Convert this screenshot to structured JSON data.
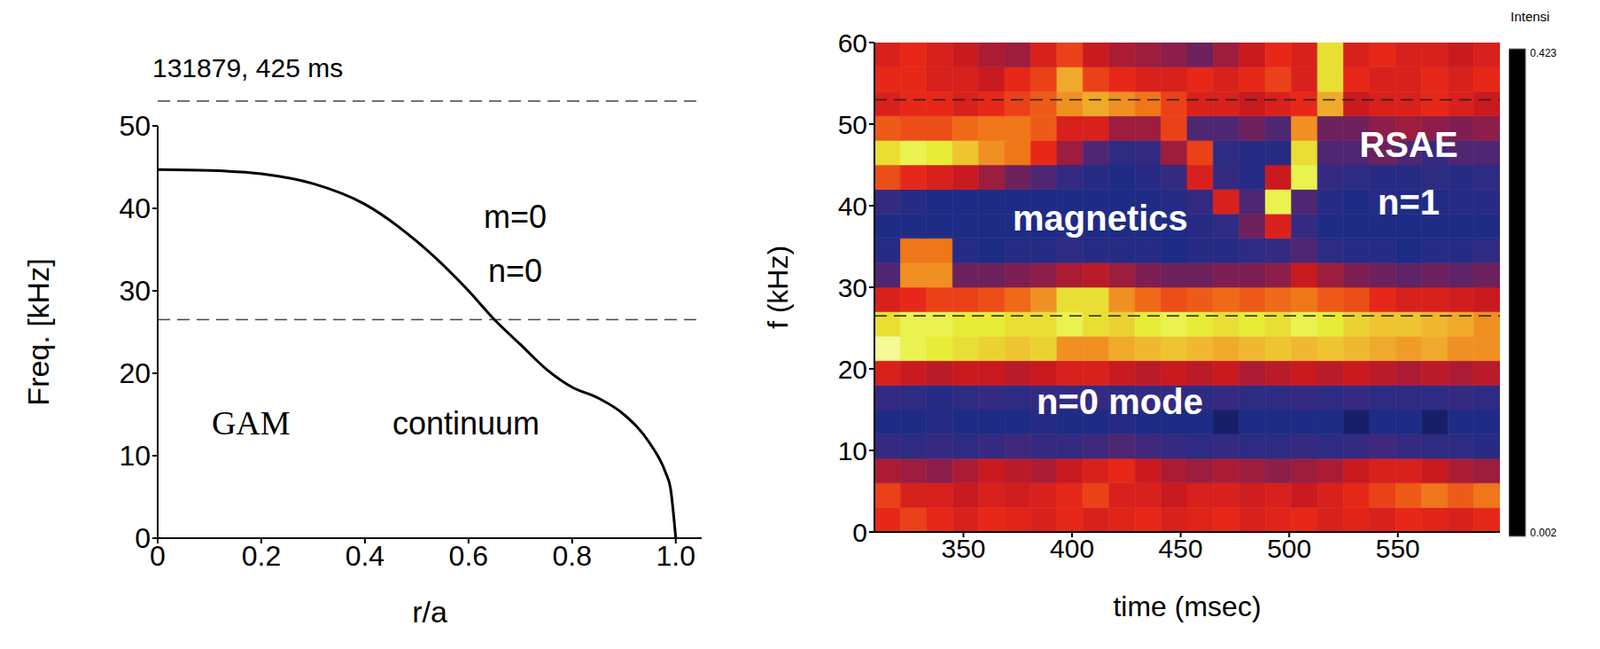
{
  "chart_data": [
    {
      "type": "line",
      "title": "131879, 425 ms",
      "x_label": "r/a",
      "y_label": "Freq. [kHz]",
      "x": [
        0,
        0.1,
        0.2,
        0.3,
        0.4,
        0.5,
        0.6,
        0.65,
        0.7,
        0.75,
        0.8,
        0.85,
        0.9,
        0.95,
        0.98,
        0.99,
        1.0
      ],
      "values": [
        44.7,
        44.6,
        44.2,
        43,
        40.5,
        36,
        30,
        26.5,
        23.5,
        20.5,
        18.3,
        17,
        15,
        11.5,
        8,
        6,
        0
      ],
      "color": "#000000",
      "xlim": [
        0,
        1.05
      ],
      "xticks": [
        0,
        0.2,
        0.4,
        0.6,
        0.8,
        {
          "value": 1,
          "label": "1.0"
        }
      ],
      "ylim": [
        0,
        50
      ],
      "yticks": [
        0,
        10,
        20,
        30,
        40,
        50
      ],
      "hlines": [
        53,
        26.5
      ],
      "annotations": [
        {
          "text": "m=0",
          "x": 0.69,
          "y": 39
        },
        {
          "text": "n=0",
          "x": 0.69,
          "y": 32.5
        },
        {
          "text": "GAM",
          "x": 0.18,
          "y": 14
        },
        {
          "text": "continuum",
          "x": 0.595,
          "y": 14
        }
      ]
    },
    {
      "type": "heatmap",
      "x_label": "time (msec)",
      "y_label": "f (kHz)",
      "xlim": [
        309,
        597
      ],
      "xticks": [
        350,
        400,
        450,
        500,
        550
      ],
      "ylim": [
        0,
        60
      ],
      "yticks": [
        0,
        10,
        20,
        30,
        40,
        50,
        60
      ],
      "hlines": [
        53,
        26.5
      ],
      "time_bins": [
        309,
        321,
        333,
        345,
        357,
        369,
        381,
        393,
        405,
        417,
        429,
        441,
        453,
        465,
        477,
        489,
        501,
        513,
        525,
        537,
        549,
        561,
        573,
        585,
        597
      ],
      "freq_bins": [
        0,
        3,
        6,
        9,
        12,
        15,
        18,
        21,
        24,
        27,
        30,
        33,
        36,
        39,
        42,
        45,
        48,
        51,
        54,
        57,
        60
      ],
      "intensity": [
        [
          0.22,
          0.24,
          0.22,
          0.2,
          0.22,
          0.21,
          0.2,
          0.22,
          0.2,
          0.21,
          0.22,
          0.2,
          0.21,
          0.22,
          0.2,
          0.21,
          0.22,
          0.2,
          0.21,
          0.2,
          0.22,
          0.21,
          0.2,
          0.22
        ],
        [
          0.24,
          0.2,
          0.2,
          0.18,
          0.2,
          0.19,
          0.2,
          0.22,
          0.24,
          0.2,
          0.2,
          0.18,
          0.2,
          0.2,
          0.19,
          0.2,
          0.18,
          0.2,
          0.22,
          0.24,
          0.26,
          0.28,
          0.26,
          0.28
        ],
        [
          0.16,
          0.15,
          0.14,
          0.16,
          0.18,
          0.17,
          0.16,
          0.18,
          0.2,
          0.22,
          0.18,
          0.16,
          0.15,
          0.16,
          0.15,
          0.14,
          0.15,
          0.16,
          0.18,
          0.2,
          0.2,
          0.18,
          0.16,
          0.15
        ],
        [
          0.08,
          0.07,
          0.08,
          0.07,
          0.08,
          0.09,
          0.08,
          0.08,
          0.09,
          0.1,
          0.09,
          0.08,
          0.07,
          0.08,
          0.07,
          0.07,
          0.08,
          0.07,
          0.08,
          0.09,
          0.08,
          0.07,
          0.07,
          0.06
        ],
        [
          0.05,
          0.05,
          0.06,
          0.05,
          0.05,
          0.05,
          0.06,
          0.05,
          0.05,
          0.06,
          0.05,
          0.05,
          0.05,
          0.04,
          0.05,
          0.05,
          0.05,
          0.05,
          0.04,
          0.05,
          0.05,
          0.04,
          0.05,
          0.05
        ],
        [
          0.08,
          0.07,
          0.06,
          0.07,
          0.08,
          0.07,
          0.08,
          0.08,
          0.08,
          0.07,
          0.08,
          0.08,
          0.07,
          0.08,
          0.07,
          0.07,
          0.08,
          0.07,
          0.08,
          0.07,
          0.07,
          0.07,
          0.08,
          0.07
        ],
        [
          0.2,
          0.18,
          0.17,
          0.18,
          0.18,
          0.17,
          0.18,
          0.2,
          0.2,
          0.18,
          0.17,
          0.18,
          0.17,
          0.18,
          0.16,
          0.17,
          0.18,
          0.17,
          0.18,
          0.17,
          0.16,
          0.17,
          0.16,
          0.17
        ],
        [
          0.4,
          0.38,
          0.37,
          0.36,
          0.35,
          0.34,
          0.35,
          0.3,
          0.3,
          0.32,
          0.33,
          0.34,
          0.33,
          0.32,
          0.33,
          0.34,
          0.33,
          0.34,
          0.33,
          0.32,
          0.31,
          0.32,
          0.3,
          0.3
        ],
        [
          0.36,
          0.38,
          0.38,
          0.37,
          0.37,
          0.36,
          0.36,
          0.38,
          0.36,
          0.35,
          0.37,
          0.38,
          0.37,
          0.36,
          0.37,
          0.36,
          0.38,
          0.37,
          0.35,
          0.34,
          0.34,
          0.33,
          0.32,
          0.3
        ],
        [
          0.2,
          0.22,
          0.24,
          0.24,
          0.25,
          0.27,
          0.3,
          0.36,
          0.36,
          0.3,
          0.27,
          0.25,
          0.26,
          0.27,
          0.26,
          0.27,
          0.28,
          0.26,
          0.25,
          0.22,
          0.2,
          0.2,
          0.19,
          0.18
        ],
        [
          0.1,
          0.3,
          0.3,
          0.12,
          0.12,
          0.13,
          0.14,
          0.16,
          0.17,
          0.15,
          0.13,
          0.12,
          0.12,
          0.13,
          0.13,
          0.14,
          0.18,
          0.15,
          0.13,
          0.12,
          0.11,
          0.12,
          0.11,
          0.12
        ],
        [
          0.06,
          0.28,
          0.28,
          0.06,
          0.05,
          0.06,
          0.06,
          0.07,
          0.06,
          0.06,
          0.06,
          0.05,
          0.06,
          0.06,
          0.07,
          0.08,
          0.1,
          0.07,
          0.06,
          0.06,
          0.05,
          0.06,
          0.06,
          0.07
        ],
        [
          0.05,
          0.05,
          0.05,
          0.05,
          0.05,
          0.05,
          0.05,
          0.05,
          0.05,
          0.05,
          0.05,
          0.05,
          0.06,
          0.07,
          0.12,
          0.2,
          0.08,
          0.05,
          0.05,
          0.05,
          0.05,
          0.05,
          0.05,
          0.05
        ],
        [
          0.08,
          0.06,
          0.05,
          0.05,
          0.05,
          0.05,
          0.05,
          0.05,
          0.05,
          0.05,
          0.05,
          0.06,
          0.08,
          0.2,
          0.1,
          0.38,
          0.1,
          0.06,
          0.05,
          0.06,
          0.05,
          0.05,
          0.06,
          0.06
        ],
        [
          0.25,
          0.22,
          0.2,
          0.18,
          0.15,
          0.12,
          0.1,
          0.08,
          0.06,
          0.05,
          0.06,
          0.08,
          0.2,
          0.08,
          0.06,
          0.18,
          0.38,
          0.08,
          0.07,
          0.06,
          0.06,
          0.07,
          0.06,
          0.07
        ],
        [
          0.36,
          0.38,
          0.37,
          0.34,
          0.3,
          0.28,
          0.22,
          0.15,
          0.1,
          0.07,
          0.08,
          0.15,
          0.24,
          0.07,
          0.06,
          0.06,
          0.36,
          0.1,
          0.1,
          0.12,
          0.1,
          0.08,
          0.1,
          0.1
        ],
        [
          0.26,
          0.25,
          0.25,
          0.27,
          0.28,
          0.28,
          0.26,
          0.2,
          0.2,
          0.15,
          0.15,
          0.24,
          0.1,
          0.1,
          0.12,
          0.1,
          0.3,
          0.12,
          0.12,
          0.14,
          0.15,
          0.14,
          0.13,
          0.14
        ],
        [
          0.2,
          0.22,
          0.22,
          0.2,
          0.22,
          0.24,
          0.26,
          0.3,
          0.32,
          0.3,
          0.28,
          0.24,
          0.2,
          0.2,
          0.18,
          0.2,
          0.22,
          0.32,
          0.18,
          0.2,
          0.2,
          0.22,
          0.2,
          0.18
        ],
        [
          0.22,
          0.22,
          0.2,
          0.2,
          0.18,
          0.22,
          0.24,
          0.32,
          0.24,
          0.22,
          0.2,
          0.2,
          0.22,
          0.2,
          0.22,
          0.24,
          0.2,
          0.36,
          0.22,
          0.2,
          0.2,
          0.22,
          0.2,
          0.22
        ],
        [
          0.2,
          0.22,
          0.2,
          0.18,
          0.16,
          0.15,
          0.2,
          0.24,
          0.18,
          0.16,
          0.15,
          0.14,
          0.12,
          0.15,
          0.18,
          0.22,
          0.2,
          0.36,
          0.2,
          0.22,
          0.2,
          0.2,
          0.18,
          0.2
        ]
      ],
      "colorbar": {
        "label": "Intensi",
        "range": [
          0.002,
          0.423
        ],
        "ticks": [
          0.002,
          0.423
        ]
      },
      "annotations": [
        {
          "text": "magnetics",
          "x": 413,
          "y": 38.5
        },
        {
          "text": "n=0 mode",
          "x": 422,
          "y": 16
        },
        {
          "text": "RSAE",
          "x": 555,
          "y": 47.5
        },
        {
          "text": "n=1",
          "x": 555,
          "y": 40.5
        }
      ]
    }
  ]
}
